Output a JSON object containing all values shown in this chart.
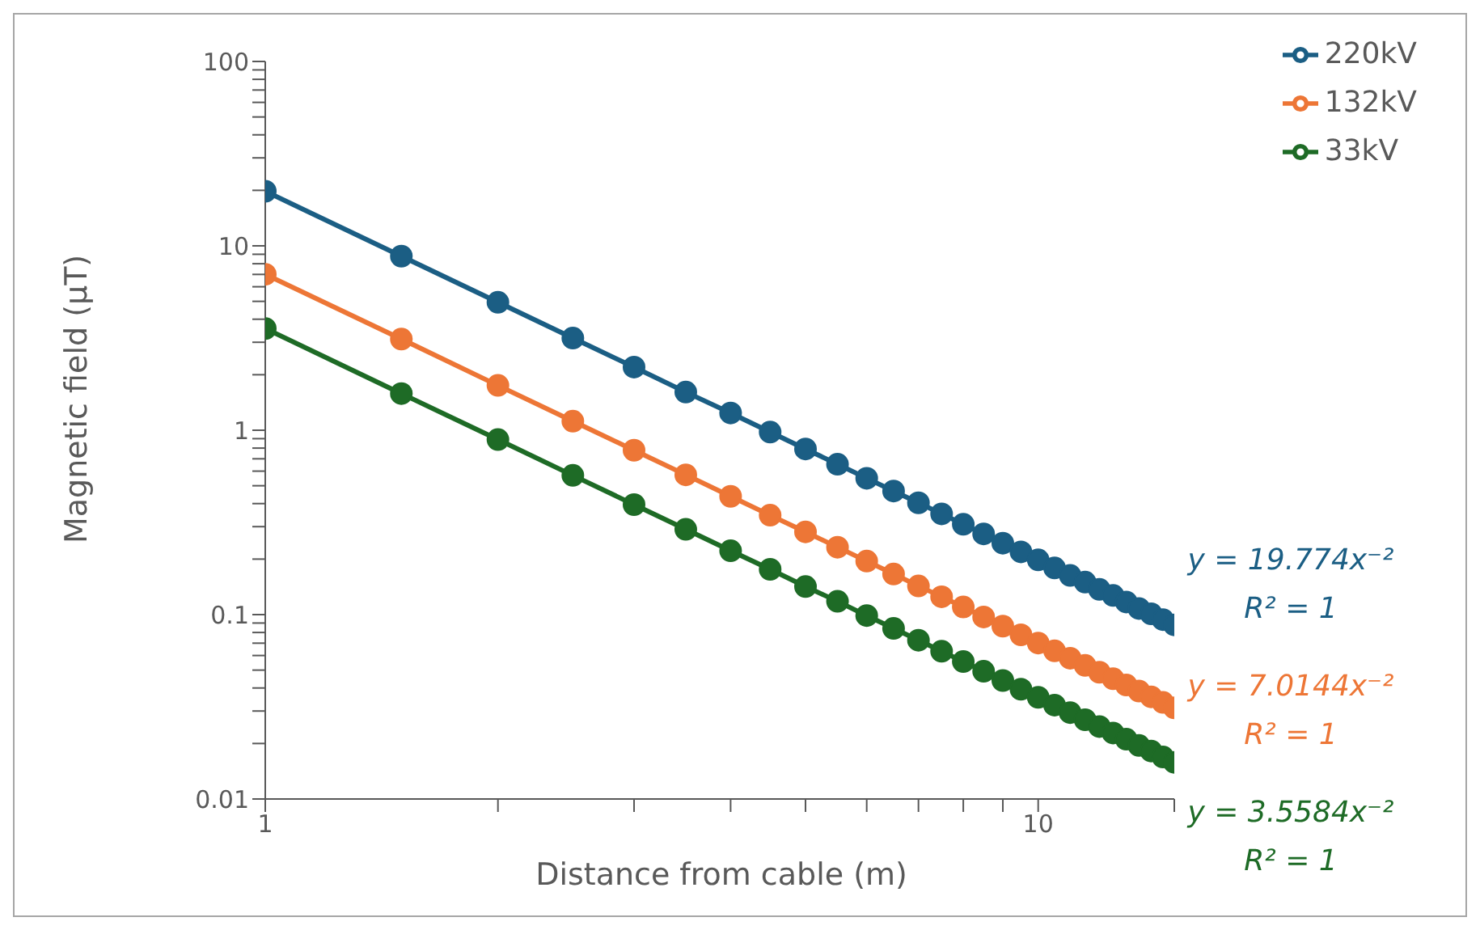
{
  "chart_data": {
    "type": "line",
    "xlabel": "Distance from cable (m)",
    "ylabel": "Magnetic field (μT)",
    "x": [
      1,
      1.5,
      2,
      2.5,
      3,
      3.5,
      4,
      4.5,
      5,
      5.5,
      6,
      6.5,
      7,
      7.5,
      8,
      8.5,
      9,
      9.5,
      10,
      10.5,
      11,
      11.5,
      12,
      12.5,
      13,
      13.5,
      14,
      14.5,
      15
    ],
    "series": [
      {
        "name": "220kV",
        "color": "#1b5e84",
        "values": [
          19.77,
          8.79,
          4.94,
          3.16,
          2.2,
          1.61,
          1.24,
          0.977,
          0.791,
          0.654,
          0.549,
          0.468,
          0.404,
          0.352,
          0.309,
          0.274,
          0.244,
          0.219,
          0.198,
          0.179,
          0.163,
          0.15,
          0.137,
          0.127,
          0.117,
          0.108,
          0.101,
          0.094,
          0.088
        ]
      },
      {
        "name": "132kV",
        "color": "#ed7636",
        "values": [
          7.01,
          3.12,
          1.75,
          1.12,
          0.779,
          0.573,
          0.438,
          0.346,
          0.281,
          0.232,
          0.195,
          0.166,
          0.143,
          0.125,
          0.11,
          0.0971,
          0.0866,
          0.0777,
          0.0701,
          0.0636,
          0.058,
          0.053,
          0.0487,
          0.0449,
          0.0415,
          0.0385,
          0.0358,
          0.0334,
          0.0312
        ]
      },
      {
        "name": "33kV",
        "color": "#1e6b26",
        "values": [
          3.56,
          1.58,
          0.89,
          0.569,
          0.395,
          0.29,
          0.222,
          0.176,
          0.142,
          0.118,
          0.0988,
          0.0842,
          0.0726,
          0.0633,
          0.0556,
          0.0493,
          0.0439,
          0.0394,
          0.0356,
          0.0323,
          0.0294,
          0.0269,
          0.0247,
          0.0228,
          0.0211,
          0.0195,
          0.0182,
          0.0169,
          0.0158
        ]
      }
    ],
    "annotations": [
      "y = 19.774x⁻²",
      "R² = 1",
      "y = 7.0144x⁻²",
      "R² = 1",
      "y = 3.5584x⁻²",
      "R² = 1"
    ],
    "log": "xy",
    "xlim": [
      1,
      15
    ],
    "ylim": [
      0.01,
      100
    ],
    "xticks": [
      1,
      {
        "value": 2,
        "label": null
      },
      {
        "value": 3,
        "label": null
      },
      {
        "value": 4,
        "label": null
      },
      {
        "value": 5,
        "label": null
      },
      {
        "value": 6,
        "label": null
      },
      {
        "value": 7,
        "label": null
      },
      {
        "value": 8,
        "label": null
      },
      {
        "value": 9,
        "label": null
      },
      10,
      {
        "value": 15,
        "label": null
      }
    ],
    "yticks": [
      0.01,
      {
        "value": 0.02,
        "label": null
      },
      {
        "value": 0.03,
        "label": null
      },
      {
        "value": 0.04,
        "label": null
      },
      {
        "value": 0.05,
        "label": null
      },
      {
        "value": 0.06,
        "label": null
      },
      {
        "value": 0.07,
        "label": null
      },
      {
        "value": 0.08,
        "label": null
      },
      {
        "value": 0.09,
        "label": null
      },
      0.1,
      {
        "value": 0.2,
        "label": null
      },
      {
        "value": 0.3,
        "label": null
      },
      {
        "value": 0.4,
        "label": null
      },
      {
        "value": 0.5,
        "label": null
      },
      {
        "value": 0.6,
        "label": null
      },
      {
        "value": 0.7,
        "label": null
      },
      {
        "value": 0.8,
        "label": null
      },
      {
        "value": 0.9,
        "label": null
      },
      1,
      {
        "value": 2,
        "label": null
      },
      {
        "value": 3,
        "label": null
      },
      {
        "value": 4,
        "label": null
      },
      {
        "value": 5,
        "label": null
      },
      {
        "value": 6,
        "label": null
      },
      {
        "value": 7,
        "label": null
      },
      {
        "value": 8,
        "label": null
      },
      {
        "value": 9,
        "label": null
      },
      10,
      {
        "value": 20,
        "label": null
      },
      {
        "value": 30,
        "label": null
      },
      {
        "value": 40,
        "label": null
      },
      {
        "value": 50,
        "label": null
      },
      {
        "value": 60,
        "label": null
      },
      {
        "value": 70,
        "label": null
      },
      {
        "value": 80,
        "label": null
      },
      {
        "value": 90,
        "label": null
      },
      100
    ],
    "grid": false,
    "legend": "top right",
    "marker": "circle",
    "line_style": "solid"
  }
}
